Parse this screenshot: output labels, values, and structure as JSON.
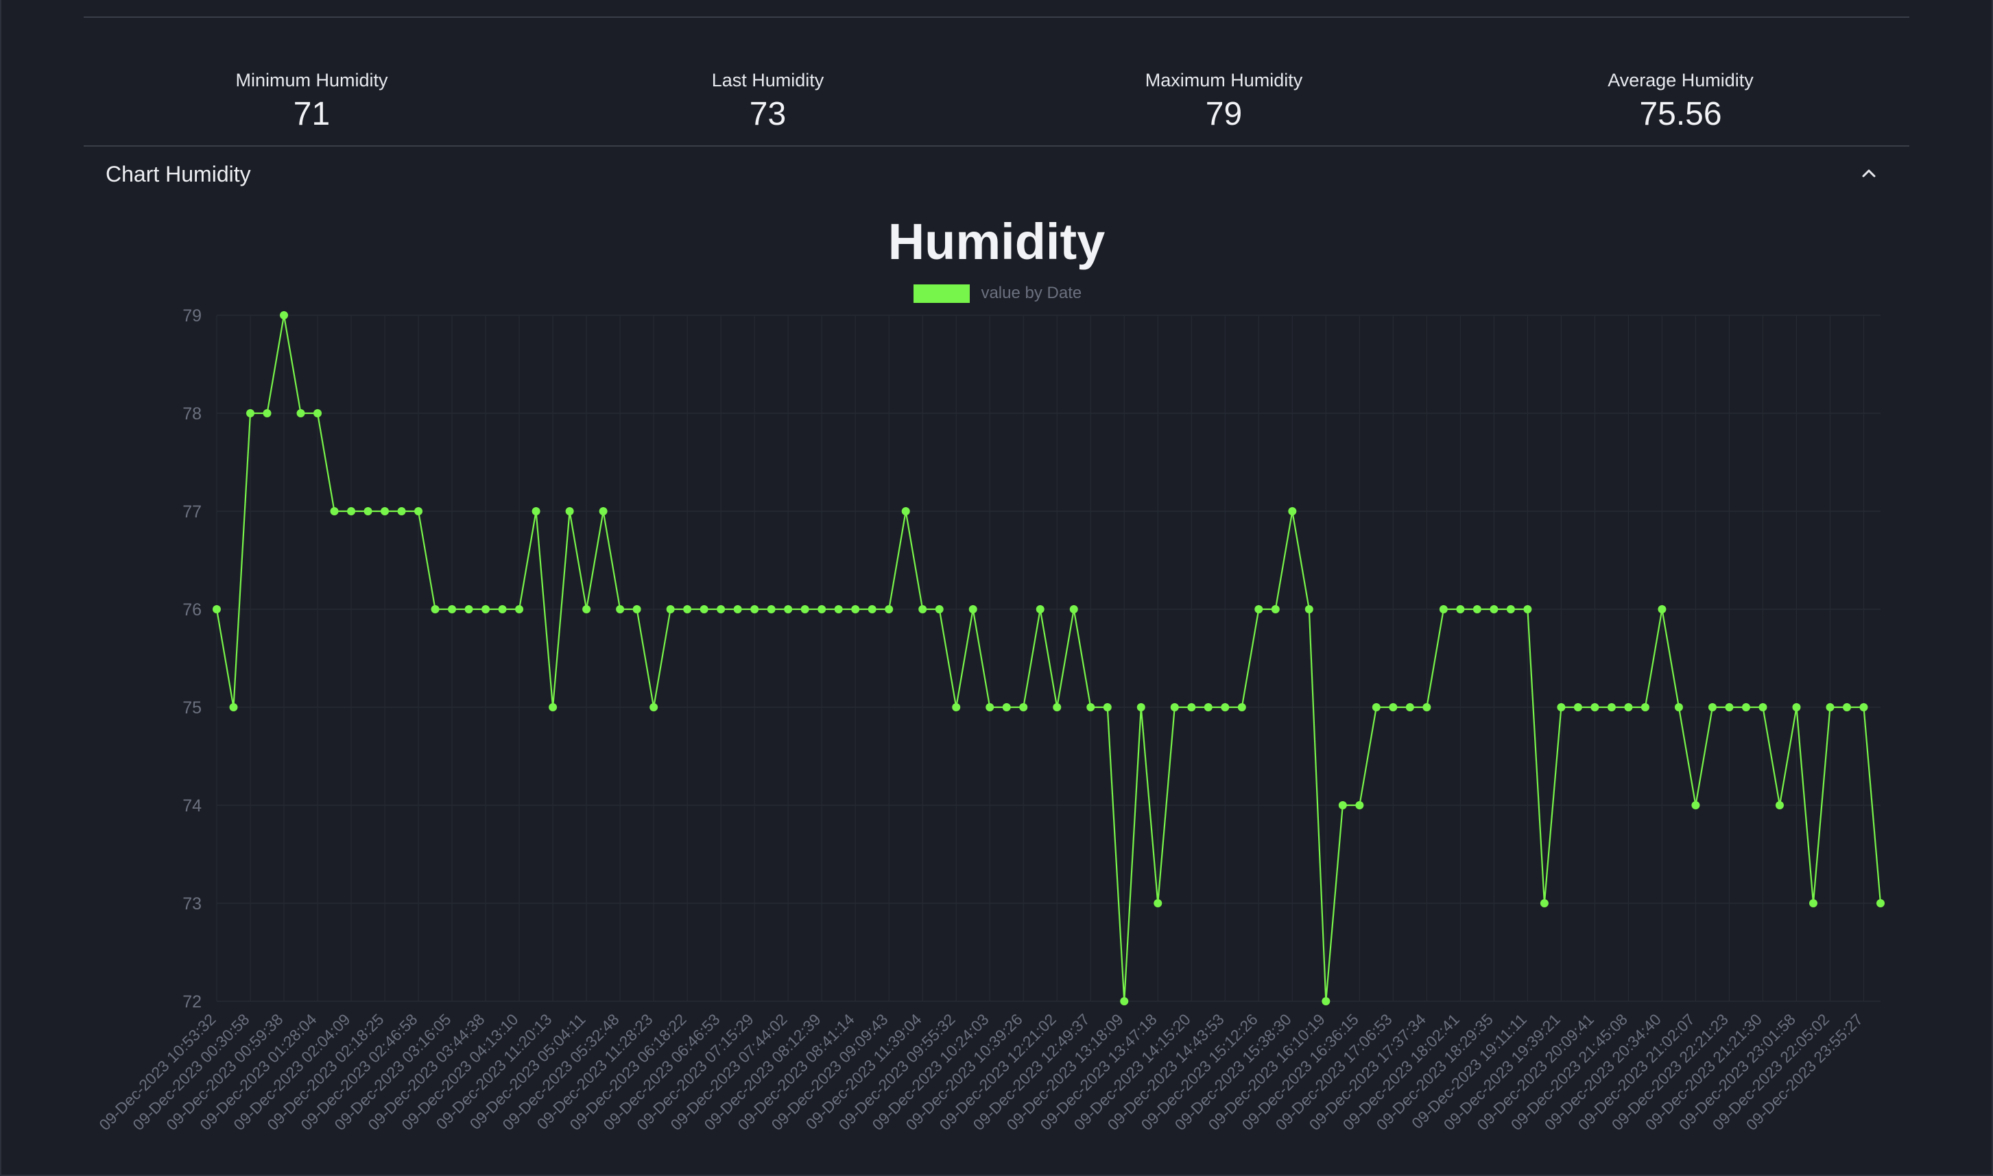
{
  "stats": {
    "minimum": {
      "label": "Minimum Humidity",
      "value": "71"
    },
    "last": {
      "label": "Last Humidity",
      "value": "73"
    },
    "maximum": {
      "label": "Maximum Humidity",
      "value": "79"
    },
    "average": {
      "label": "Average Humidity",
      "value": "75.56"
    }
  },
  "accordion": {
    "title": "Chart Humidity",
    "expanded": true
  },
  "colors": {
    "series": "#78f54a",
    "background": "#1b1e26",
    "grid": "#262a33",
    "tick": "#6c7180"
  },
  "chart_data": {
    "type": "line",
    "title": "Humidity",
    "legend": "value by Date",
    "legend_position": "top",
    "xlabel": "",
    "ylabel": "",
    "ylim": [
      72,
      79
    ],
    "yticks": [
      72,
      73,
      74,
      75,
      76,
      77,
      78,
      79
    ],
    "grid": true,
    "x": [
      "09-Dec-2023 10:53:32",
      "",
      "09-Dec-2023 00:30:58",
      "",
      "09-Dec-2023 00:59:38",
      "",
      "09-Dec-2023 01:28:04",
      "",
      "09-Dec-2023 02:04:09",
      "",
      "09-Dec-2023 02:18:25",
      "",
      "09-Dec-2023 02:46:58",
      "",
      "09-Dec-2023 03:16:05",
      "",
      "09-Dec-2023 03:44:38",
      "",
      "09-Dec-2023 04:13:10",
      "",
      "09-Dec-2023 11:20:13",
      "",
      "09-Dec-2023 05:04:11",
      "",
      "09-Dec-2023 05:32:48",
      "",
      "09-Dec-2023 11:28:23",
      "",
      "09-Dec-2023 06:18:22",
      "",
      "09-Dec-2023 06:46:53",
      "",
      "09-Dec-2023 07:15:29",
      "",
      "09-Dec-2023 07:44:02",
      "",
      "09-Dec-2023 08:12:39",
      "",
      "09-Dec-2023 08:41:14",
      "",
      "09-Dec-2023 09:09:43",
      "",
      "09-Dec-2023 11:39:04",
      "",
      "09-Dec-2023 09:55:32",
      "",
      "09-Dec-2023 10:24:03",
      "",
      "09-Dec-2023 10:39:26",
      "",
      "09-Dec-2023 12:21:02",
      "",
      "09-Dec-2023 12:49:37",
      "",
      "09-Dec-2023 13:18:09",
      "",
      "09-Dec-2023 13:47:18",
      "",
      "09-Dec-2023 14:15:20",
      "",
      "09-Dec-2023 14:43:53",
      "",
      "09-Dec-2023 15:12:26",
      "",
      "09-Dec-2023 15:38:30",
      "",
      "09-Dec-2023 16:10:19",
      "",
      "09-Dec-2023 16:36:15",
      "",
      "09-Dec-2023 17:06:53",
      "",
      "09-Dec-2023 17:37:34",
      "",
      "09-Dec-2023 18:02:41",
      "",
      "09-Dec-2023 18:29:35",
      "",
      "09-Dec-2023 19:11:11",
      "",
      "09-Dec-2023 19:39:21",
      "",
      "09-Dec-2023 20:09:41",
      "",
      "09-Dec-2023 21:45:08",
      "",
      "09-Dec-2023 20:34:40",
      "",
      "09-Dec-2023 21:02:07",
      "",
      "09-Dec-2023 22:21:23",
      "",
      "09-Dec-2023 21:21:30",
      "",
      "09-Dec-2023 23:01:58",
      "",
      "09-Dec-2023 22:05:02",
      "",
      "09-Dec-2023 23:55:27",
      ""
    ],
    "values": [
      76,
      75,
      78,
      78,
      79,
      78,
      78,
      77,
      77,
      77,
      77,
      77,
      77,
      76,
      76,
      76,
      76,
      76,
      76,
      77,
      75,
      77,
      76,
      77,
      76,
      76,
      75,
      76,
      76,
      76,
      76,
      76,
      76,
      76,
      76,
      76,
      76,
      76,
      76,
      76,
      76,
      77,
      76,
      76,
      75,
      76,
      75,
      75,
      75,
      76,
      75,
      76,
      75,
      75,
      72,
      75,
      73,
      75,
      75,
      75,
      75,
      75,
      76,
      76,
      77,
      76,
      72,
      74,
      74,
      75,
      75,
      75,
      75,
      76,
      76,
      76,
      76,
      76,
      76,
      73,
      75,
      75,
      75,
      75,
      75,
      75,
      76,
      75,
      74,
      75,
      75,
      75,
      75,
      74,
      75,
      73,
      75,
      75,
      75,
      73
    ]
  }
}
